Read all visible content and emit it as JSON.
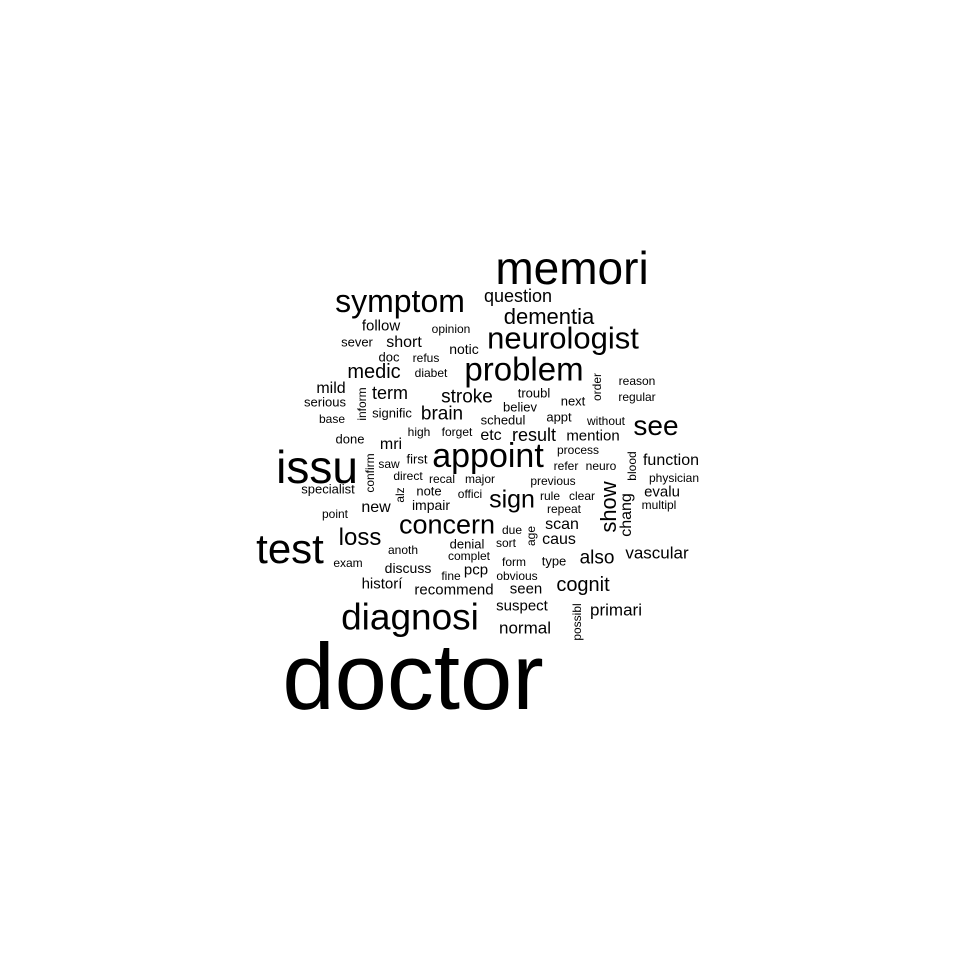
{
  "word_cloud": {
    "text_color": "#000000",
    "background_color": "#ffffff",
    "words": [
      {
        "text": "doctor",
        "weight": 100
      },
      {
        "text": "memori",
        "weight": 48
      },
      {
        "text": "issu",
        "weight": 47
      },
      {
        "text": "test",
        "weight": 44
      },
      {
        "text": "diagnosi",
        "weight": 40
      },
      {
        "text": "appoint",
        "weight": 36
      },
      {
        "text": "problem",
        "weight": 35
      },
      {
        "text": "symptom",
        "weight": 34
      },
      {
        "text": "neurologist",
        "weight": 33
      },
      {
        "text": "see",
        "weight": 28
      },
      {
        "text": "concern",
        "weight": 28
      },
      {
        "text": "sign",
        "weight": 26
      },
      {
        "text": "loss",
        "weight": 25
      },
      {
        "text": "dementia",
        "weight": 23
      },
      {
        "text": "show",
        "weight": 22
      },
      {
        "text": "cognit",
        "weight": 21
      },
      {
        "text": "medic",
        "weight": 20
      },
      {
        "text": "also",
        "weight": 19
      },
      {
        "text": "brain",
        "weight": 19
      },
      {
        "text": "stroke",
        "weight": 19
      },
      {
        "text": "term",
        "weight": 18
      },
      {
        "text": "question",
        "weight": 18
      },
      {
        "text": "result",
        "weight": 18
      },
      {
        "text": "normal",
        "weight": 17
      },
      {
        "text": "primari",
        "weight": 17
      },
      {
        "text": "vascular",
        "weight": 17
      },
      {
        "text": "function",
        "weight": 16
      },
      {
        "text": "mild",
        "weight": 16
      },
      {
        "text": "short",
        "weight": 16
      },
      {
        "text": "new",
        "weight": 16
      },
      {
        "text": "mention",
        "weight": 15
      },
      {
        "text": "scan",
        "weight": 16
      },
      {
        "text": "caus",
        "weight": 16
      },
      {
        "text": "chang",
        "weight": 16
      },
      {
        "text": "etc",
        "weight": 16
      },
      {
        "text": "mri",
        "weight": 16
      },
      {
        "text": "suspect",
        "weight": 15
      },
      {
        "text": "historí",
        "weight": 15
      },
      {
        "text": "recommend",
        "weight": 15
      },
      {
        "text": "seen",
        "weight": 15
      },
      {
        "text": "evalu",
        "weight": 15
      },
      {
        "text": "follow",
        "weight": 15
      },
      {
        "text": "discuss",
        "weight": 14
      },
      {
        "text": "pcp",
        "weight": 15
      },
      {
        "text": "notic",
        "weight": 14
      },
      {
        "text": "impair",
        "weight": 14
      },
      {
        "text": "sever",
        "weight": 13
      },
      {
        "text": "serious",
        "weight": 13
      },
      {
        "text": "done",
        "weight": 13
      },
      {
        "text": "specialist",
        "weight": 13
      },
      {
        "text": "first",
        "weight": 13
      },
      {
        "text": "signific",
        "weight": 13
      },
      {
        "text": "note",
        "weight": 13
      },
      {
        "text": "denial",
        "weight": 13
      },
      {
        "text": "sort",
        "weight": 12
      },
      {
        "text": "type",
        "weight": 13
      },
      {
        "text": "troubl",
        "weight": 13
      },
      {
        "text": "believ",
        "weight": 13
      },
      {
        "text": "next",
        "weight": 13
      },
      {
        "text": "schedul",
        "weight": 13
      },
      {
        "text": "appt",
        "weight": 13
      },
      {
        "text": "reason",
        "weight": 12
      },
      {
        "text": "regular",
        "weight": 12
      },
      {
        "text": "without",
        "weight": 12
      },
      {
        "text": "opinion",
        "weight": 12
      },
      {
        "text": "doc",
        "weight": 13
      },
      {
        "text": "refus",
        "weight": 12
      },
      {
        "text": "diabet",
        "weight": 12
      },
      {
        "text": "base",
        "weight": 12
      },
      {
        "text": "high",
        "weight": 12
      },
      {
        "text": "forget",
        "weight": 12
      },
      {
        "text": "saw",
        "weight": 12
      },
      {
        "text": "refer",
        "weight": 12
      },
      {
        "text": "neuro",
        "weight": 12
      },
      {
        "text": "process",
        "weight": 12
      },
      {
        "text": "physician",
        "weight": 12
      },
      {
        "text": "direct",
        "weight": 12
      },
      {
        "text": "recal",
        "weight": 12
      },
      {
        "text": "major",
        "weight": 12
      },
      {
        "text": "previous",
        "weight": 12
      },
      {
        "text": "offici",
        "weight": 12
      },
      {
        "text": "rule",
        "weight": 12
      },
      {
        "text": "clear",
        "weight": 12
      },
      {
        "text": "repeat",
        "weight": 12
      },
      {
        "text": "multipl",
        "weight": 12
      },
      {
        "text": "point",
        "weight": 12
      },
      {
        "text": "due",
        "weight": 12
      },
      {
        "text": "anoth",
        "weight": 12
      },
      {
        "text": "complet",
        "weight": 12
      },
      {
        "text": "form",
        "weight": 12
      },
      {
        "text": "exam",
        "weight": 12
      },
      {
        "text": "fine",
        "weight": 12
      },
      {
        "text": "obvious",
        "weight": 12
      },
      {
        "text": "inform",
        "weight": 12
      },
      {
        "text": "confirm",
        "weight": 12
      },
      {
        "text": "alz",
        "weight": 12
      },
      {
        "text": "order",
        "weight": 12
      },
      {
        "text": "blood",
        "weight": 12
      },
      {
        "text": "age",
        "weight": 12
      },
      {
        "text": "possibl",
        "weight": 12
      }
    ]
  }
}
